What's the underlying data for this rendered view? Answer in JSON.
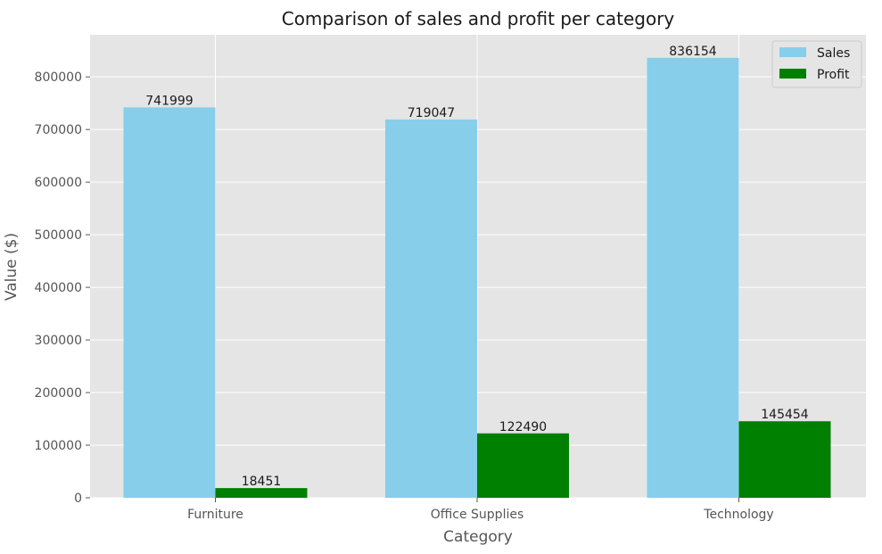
{
  "chart_data": {
    "type": "bar",
    "title": "Comparison of sales and profit per category",
    "xlabel": "Category",
    "ylabel": "Value ($)",
    "categories": [
      "Furniture",
      "Office Supplies",
      "Technology"
    ],
    "series": [
      {
        "name": "Sales",
        "values": [
          741999,
          719047,
          836154
        ],
        "color": "#87ceeb"
      },
      {
        "name": "Profit",
        "values": [
          18451,
          122490,
          145454
        ],
        "color": "#008000"
      }
    ],
    "ylim": [
      0,
      880000
    ],
    "yticks": [
      0,
      100000,
      200000,
      300000,
      400000,
      500000,
      600000,
      700000,
      800000
    ],
    "grid": true,
    "legend_position": "top-right",
    "background": "#e5e5e5"
  }
}
